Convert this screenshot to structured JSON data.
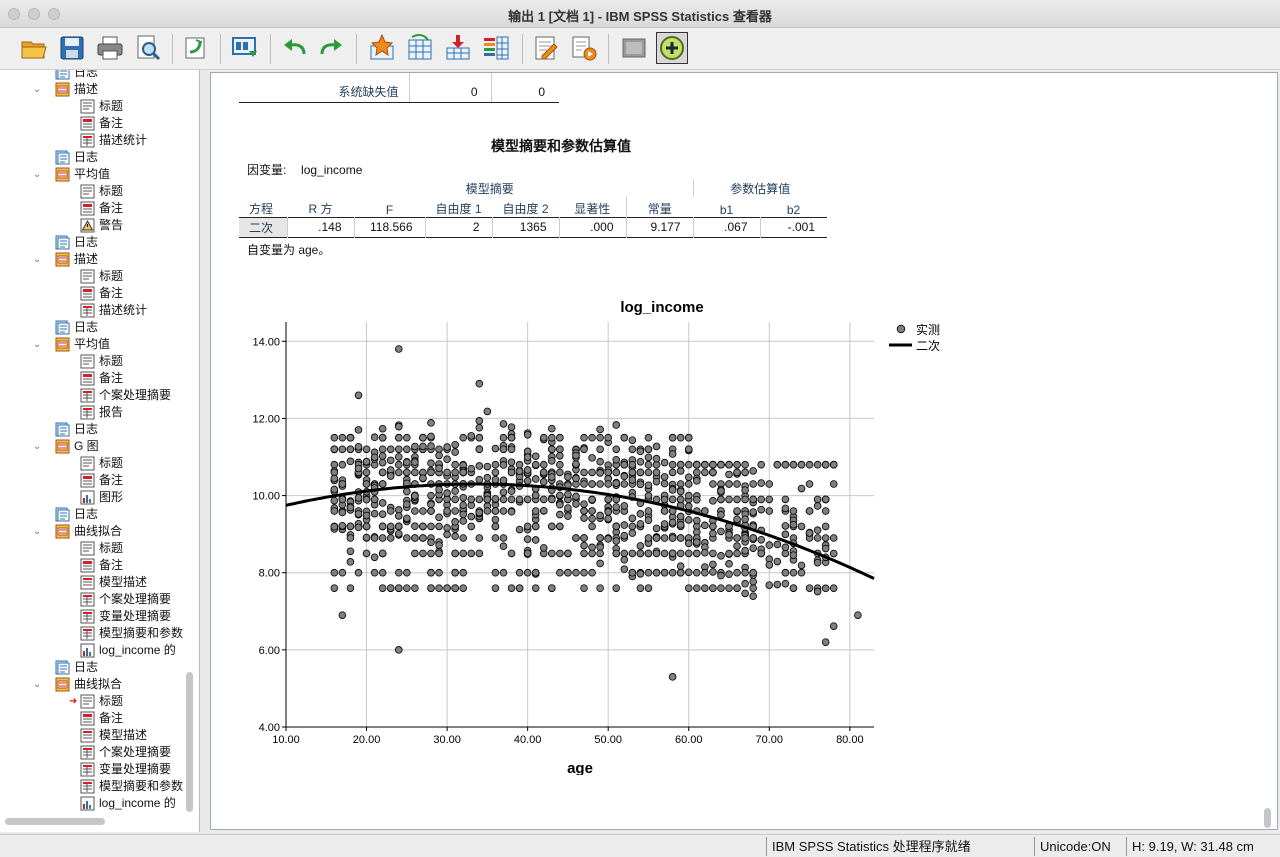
{
  "window": {
    "title": "输出 1 [文档 1] - IBM SPSS Statistics 查看器"
  },
  "toolbar": {
    "buttons": [
      "open-icon",
      "save-icon",
      "print-icon",
      "print-preview-icon",
      "export-icon",
      "recall-dialog-icon",
      "undo-icon",
      "redo-icon",
      "goto-data-icon",
      "goto-case-icon",
      "goto-variable-icon",
      "variables-icon",
      "insert-output-icon",
      "script-icon",
      "designate-window-icon",
      "insert-new-icon"
    ]
  },
  "outline": {
    "items": [
      {
        "level": 1,
        "type": "log",
        "label": "日志"
      },
      {
        "level": 0,
        "type": "proc",
        "label": "描述"
      },
      {
        "level": 2,
        "type": "title",
        "label": "标题"
      },
      {
        "level": 2,
        "type": "notes",
        "label": "备注"
      },
      {
        "level": 2,
        "type": "table",
        "label": "描述统计"
      },
      {
        "level": 1,
        "type": "log",
        "label": "日志"
      },
      {
        "level": 0,
        "type": "proc",
        "label": "平均值"
      },
      {
        "level": 2,
        "type": "title",
        "label": "标题"
      },
      {
        "level": 2,
        "type": "notes",
        "label": "备注"
      },
      {
        "level": 2,
        "type": "warning",
        "label": "警告"
      },
      {
        "level": 1,
        "type": "log",
        "label": "日志"
      },
      {
        "level": 0,
        "type": "proc",
        "label": "描述"
      },
      {
        "level": 2,
        "type": "title",
        "label": "标题"
      },
      {
        "level": 2,
        "type": "notes",
        "label": "备注"
      },
      {
        "level": 2,
        "type": "table",
        "label": "描述统计"
      },
      {
        "level": 1,
        "type": "log",
        "label": "日志"
      },
      {
        "level": 0,
        "type": "proc",
        "label": "平均值"
      },
      {
        "level": 2,
        "type": "title",
        "label": "标题"
      },
      {
        "level": 2,
        "type": "notes",
        "label": "备注"
      },
      {
        "level": 2,
        "type": "table",
        "label": "个案处理摘要"
      },
      {
        "level": 2,
        "type": "table",
        "label": "报告"
      },
      {
        "level": 1,
        "type": "log",
        "label": "日志"
      },
      {
        "level": 0,
        "type": "proc",
        "label": "G 图"
      },
      {
        "level": 2,
        "type": "title",
        "label": "标题"
      },
      {
        "level": 2,
        "type": "notes",
        "label": "备注"
      },
      {
        "level": 2,
        "type": "chart",
        "label": "图形"
      },
      {
        "level": 1,
        "type": "log",
        "label": "日志"
      },
      {
        "level": 0,
        "type": "proc",
        "label": "曲线拟合"
      },
      {
        "level": 2,
        "type": "title",
        "label": "标题"
      },
      {
        "level": 2,
        "type": "notes",
        "label": "备注"
      },
      {
        "level": 2,
        "type": "text",
        "label": "模型描述"
      },
      {
        "level": 2,
        "type": "table",
        "label": "个案处理摘要"
      },
      {
        "level": 2,
        "type": "table",
        "label": "变量处理摘要"
      },
      {
        "level": 2,
        "type": "table",
        "label": "模型摘要和参数"
      },
      {
        "level": 2,
        "type": "chart",
        "label": "log_income 的"
      },
      {
        "level": 1,
        "type": "log",
        "label": "日志"
      },
      {
        "level": 0,
        "type": "proc",
        "label": "曲线拟合"
      },
      {
        "level": 2,
        "type": "title",
        "label": "标题",
        "current": true
      },
      {
        "level": 2,
        "type": "notes",
        "label": "备注"
      },
      {
        "level": 2,
        "type": "text",
        "label": "模型描述"
      },
      {
        "level": 2,
        "type": "table",
        "label": "个案处理摘要"
      },
      {
        "level": 2,
        "type": "table",
        "label": "变量处理摘要"
      },
      {
        "level": 2,
        "type": "table",
        "label": "模型摘要和参数"
      },
      {
        "level": 2,
        "type": "chart",
        "label": "log_income 的"
      }
    ]
  },
  "top_table": {
    "row_label": "系统缺失值",
    "values": [
      "0",
      "0"
    ]
  },
  "model_table": {
    "title": "模型摘要和参数估算值",
    "dependent_label": "因变量:",
    "dependent_value": "log_income",
    "group_summary": "模型摘要",
    "group_params": "参数估算值",
    "col_equation": "方程",
    "columns": [
      "R 方",
      "F",
      "自由度 1",
      "自由度 2",
      "显著性",
      "常量",
      "b1",
      "b2"
    ],
    "row_label": "二次",
    "row_values": [
      ".148",
      "118.566",
      "2",
      "1365",
      ".000",
      "9.177",
      ".067",
      "-.001"
    ],
    "footnote": "自变量为 age。"
  },
  "chart_data": {
    "type": "scatter",
    "title": "log_income",
    "xlabel": "age",
    "ylabel": "",
    "xlim": [
      10,
      83
    ],
    "ylim": [
      4,
      14.5
    ],
    "x_ticks": [
      "10.00",
      "20.00",
      "30.00",
      "40.00",
      "50.00",
      "60.00",
      "70.00",
      "80.00"
    ],
    "y_ticks": [
      "4.00",
      "6.00",
      "8.00",
      "10.00",
      "12.00",
      "14.00"
    ],
    "grid": true,
    "legend_position": "top-right",
    "series": [
      {
        "name": "实测",
        "kind": "points",
        "color": "#808080"
      },
      {
        "name": "二次",
        "kind": "curve",
        "color": "#000000",
        "constant": 9.177,
        "b1": 0.067,
        "b2": -0.001
      }
    ],
    "outliers": [
      [
        24,
        13.8
      ],
      [
        19,
        12.6
      ],
      [
        34,
        12.9
      ],
      [
        58,
        5.3
      ],
      [
        17,
        6.9
      ],
      [
        24,
        6.0
      ],
      [
        77,
        6.2
      ],
      [
        81,
        6.9
      ]
    ]
  },
  "status": {
    "processor": "IBM SPSS Statistics 处理程序就绪",
    "unicode": "Unicode:ON",
    "dims": "H: 9.19, W: 31.48 cm"
  }
}
